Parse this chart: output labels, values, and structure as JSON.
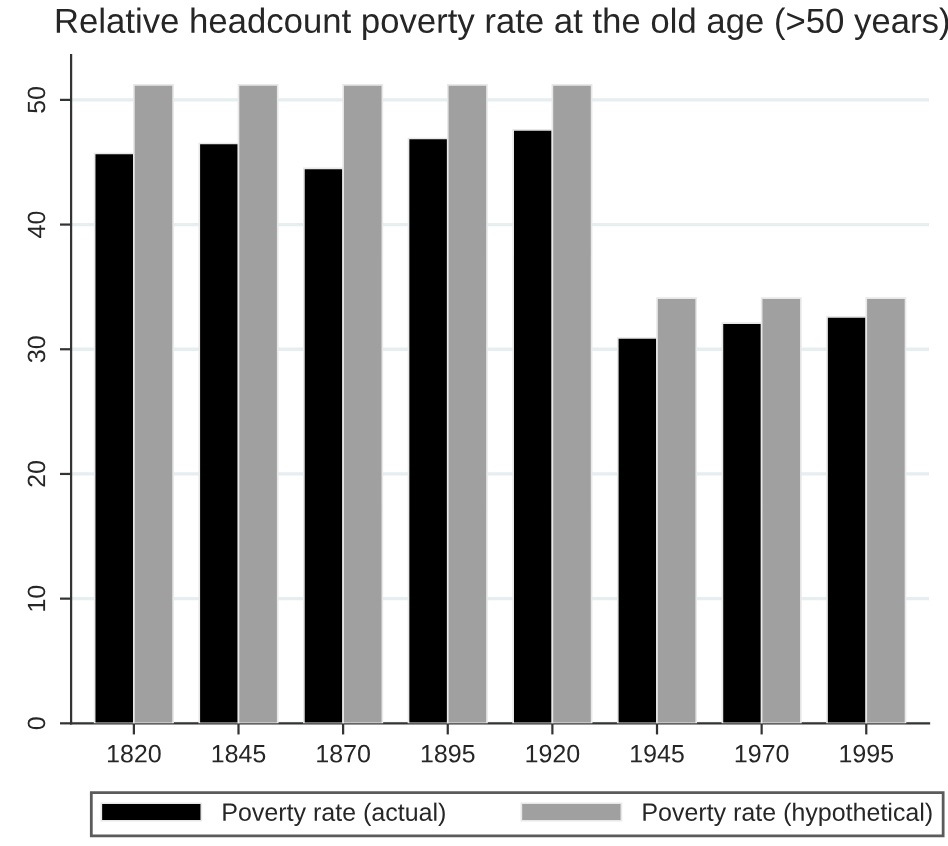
{
  "chart_data": {
    "type": "bar",
    "title": "Relative headcount poverty rate at the old age (>50 years)",
    "categories": [
      "1820",
      "1845",
      "1870",
      "1895",
      "1920",
      "1945",
      "1970",
      "1995"
    ],
    "series": [
      {
        "name": "Poverty rate (actual)",
        "color": "#000000",
        "values": [
          45.7,
          46.5,
          44.5,
          46.9,
          47.6,
          30.9,
          32.1,
          32.6
        ]
      },
      {
        "name": "Poverty rate (hypothetical)",
        "color": "#a0a0a0",
        "values": [
          51.2,
          51.2,
          51.2,
          51.2,
          51.2,
          34.1,
          34.1,
          34.1
        ]
      }
    ],
    "ylim": [
      0,
      53.6
    ],
    "yticks": [
      0,
      10,
      20,
      30,
      40,
      50
    ],
    "grid": "y",
    "legend": "bottom"
  }
}
